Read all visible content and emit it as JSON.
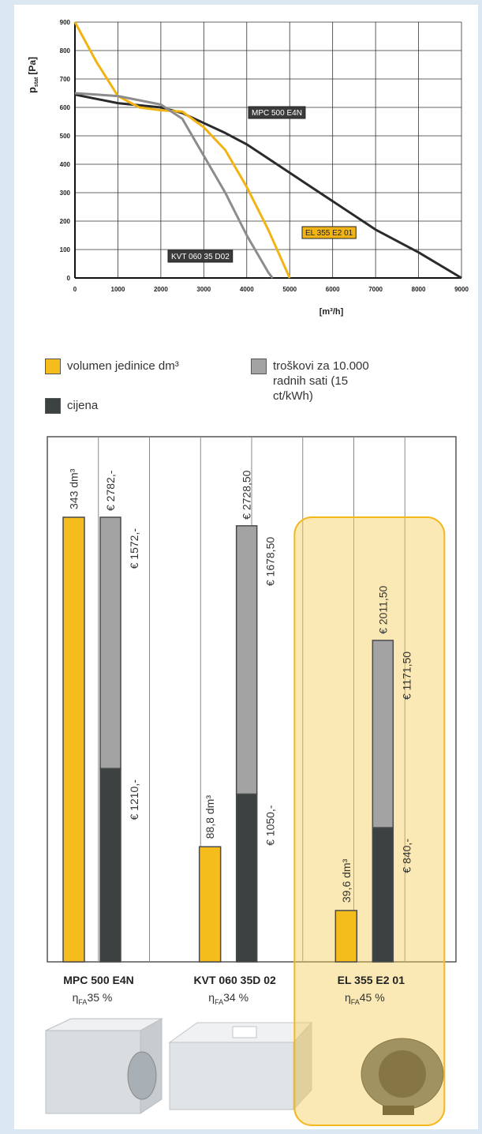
{
  "chart_data": [
    {
      "type": "line",
      "ylabel": "p",
      "ylabel_subscript": "stat",
      "ylabel_unit": "[Pa]",
      "xlabel": "[m³/h]",
      "xlim": [
        0,
        9000
      ],
      "ylim": [
        0,
        900
      ],
      "xticks": [
        0,
        1000,
        2000,
        3000,
        4000,
        5000,
        6000,
        7000,
        8000,
        9000
      ],
      "yticks": [
        0,
        100,
        200,
        300,
        400,
        500,
        600,
        700,
        800,
        900
      ],
      "grid": true,
      "series": [
        {
          "name": "MPC 500 E4N",
          "color": "#2b2b2b",
          "x": [
            0,
            1000,
            2000,
            2500,
            3000,
            3500,
            4000,
            5000,
            6000,
            6500,
            7000,
            8000,
            9000
          ],
          "values": [
            645,
            615,
            600,
            580,
            545,
            510,
            470,
            370,
            270,
            220,
            170,
            90,
            0
          ]
        },
        {
          "name": "EL 355 E2 01",
          "color": "#f2b414",
          "x": [
            0,
            500,
            1000,
            1500,
            2000,
            2500,
            3000,
            3500,
            4000,
            4500,
            5000
          ],
          "values": [
            900,
            760,
            640,
            600,
            590,
            585,
            530,
            450,
            320,
            170,
            0
          ]
        },
        {
          "name": "KVT 060 35 D02",
          "color": "#8c8c8c",
          "x": [
            0,
            1000,
            2000,
            2500,
            3000,
            3500,
            4000,
            4500,
            4600
          ],
          "values": [
            650,
            640,
            610,
            560,
            430,
            300,
            150,
            20,
            0
          ]
        }
      ]
    },
    {
      "type": "bar",
      "categories": [
        "MPC 500 E4N",
        "KVT 060 35D 02",
        "EL 355 E2 01"
      ],
      "efficiency_symbol": "η",
      "efficiency_subscript": "FA",
      "efficiency_labels": [
        "35 %",
        "34 %",
        "45 %"
      ],
      "highlight": 2,
      "series": [
        {
          "name": "volumen jedinice dm³",
          "color": "#f5bd1c",
          "stack": "volume",
          "values": [
            343,
            88.8,
            39.6
          ],
          "value_labels": [
            "343 dm³",
            "88,8 dm³",
            "39,6 dm³"
          ]
        },
        {
          "name": "cijena",
          "color": "#3c4242",
          "stack": "cost",
          "values": [
            1210,
            1050,
            840
          ],
          "value_labels": [
            "€ 1210,-",
            "€ 1050,-",
            "€ 840,-"
          ]
        },
        {
          "name": "troškovi za 10.000 radnih sati (15 ct/kWh)",
          "color": "#a3a3a3",
          "stack": "cost",
          "values": [
            1572,
            1678.5,
            1171.5
          ],
          "value_labels": [
            "€ 1572,-",
            "€ 1678,50",
            "€ 1171,50"
          ]
        }
      ],
      "total_labels": [
        "€ 2782,-",
        "€ 2728,50",
        "€ 2011,50"
      ]
    }
  ]
}
